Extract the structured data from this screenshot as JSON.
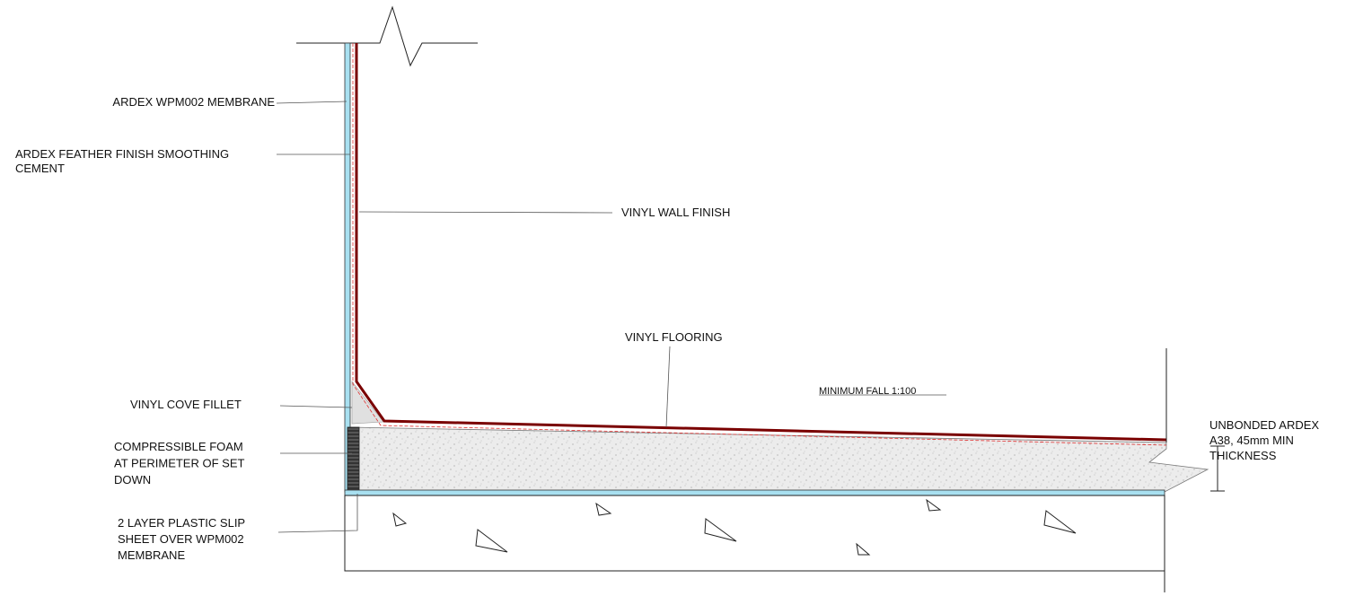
{
  "labels": {
    "membrane": [
      "ARDEX WPM002 MEMBRANE"
    ],
    "smoothing": [
      "ARDEX FEATHER FINISH SMOOTHING",
      "CEMENT"
    ],
    "wall_finish": [
      "VINYL WALL FINISH"
    ],
    "flooring": [
      "VINYL FLOORING"
    ],
    "fall": [
      "MINIMUM FALL 1:100"
    ],
    "cove": [
      "VINYL COVE FILLET"
    ],
    "foam": [
      "COMPRESSIBLE FOAM",
      "AT PERIMETER OF SET",
      "DOWN"
    ],
    "slip": [
      "2 LAYER PLASTIC SLIP",
      "SHEET OVER WPM002",
      "MEMBRANE"
    ],
    "screed": [
      "UNBONDED ARDEX",
      "A38, 45mm MIN",
      "THICKNESS"
    ]
  }
}
